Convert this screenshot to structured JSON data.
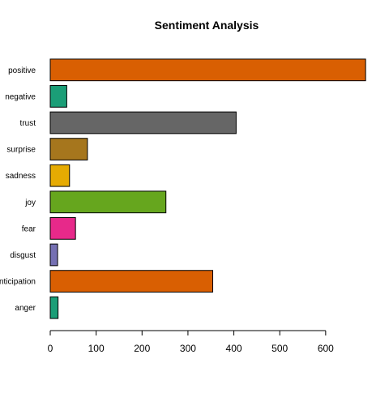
{
  "chart_data": {
    "type": "bar",
    "orientation": "horizontal",
    "title": "Sentiment Analysis",
    "xlabel": "",
    "ylabel": "",
    "categories": [
      "anger",
      "anticipation",
      "disgust",
      "fear",
      "joy",
      "sadness",
      "surprise",
      "trust",
      "negative",
      "positive"
    ],
    "values": [
      17,
      354,
      16,
      55,
      252,
      42,
      81,
      405,
      36,
      687
    ],
    "colors": [
      "#1B9E77",
      "#D95F02",
      "#7570B3",
      "#E7298A",
      "#66A61E",
      "#E6AB02",
      "#A6761D",
      "#666666",
      "#1B9E77",
      "#D95F02"
    ],
    "xlim": [
      0,
      700
    ],
    "xticks": [
      0,
      100,
      200,
      300,
      400,
      500,
      600
    ],
    "grid": false,
    "legend": "none"
  }
}
